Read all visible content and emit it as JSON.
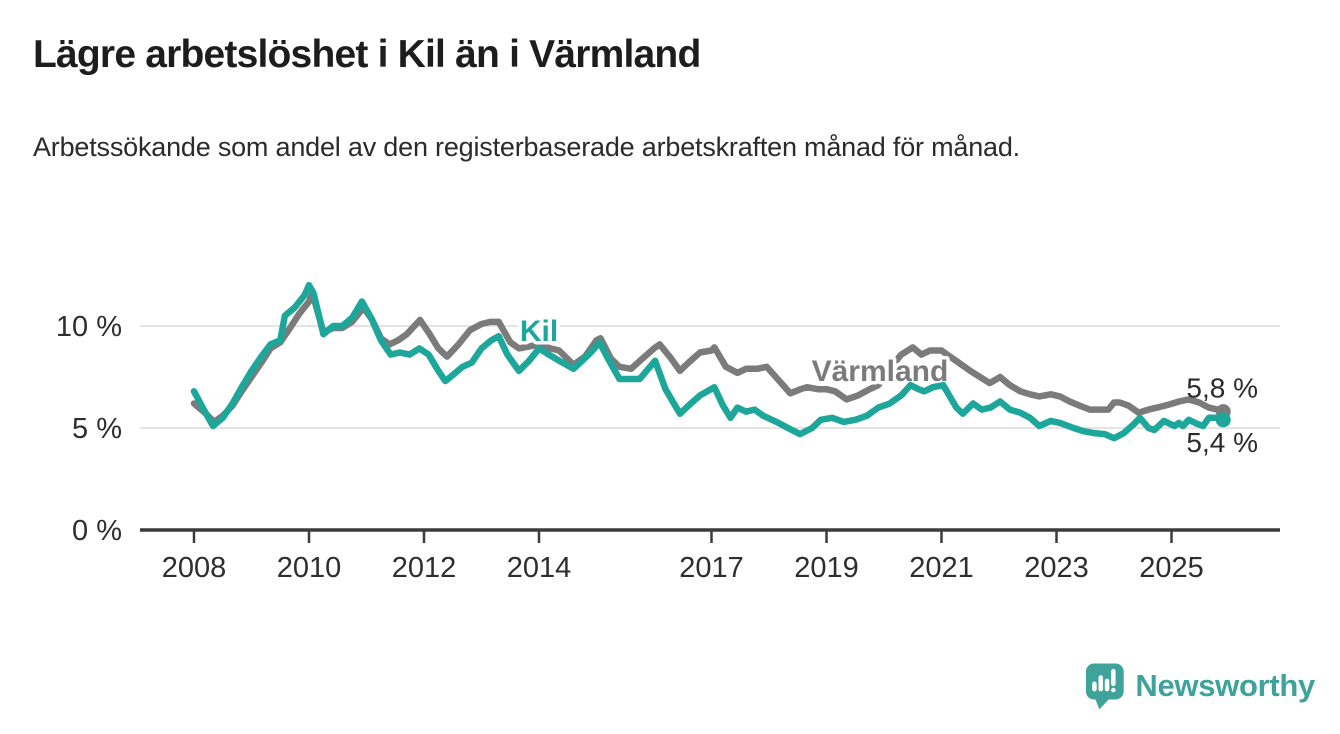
{
  "header": {
    "title": "Lägre arbetslöshet i Kil än i Värmland",
    "subtitle": "Arbetssökande som andel av den registerbaserade arbetskraften månad för månad."
  },
  "footer": {
    "logo_text": "Newsworthy"
  },
  "colors": {
    "kil_line": "#1da79b",
    "varmland_line": "#7b7b7b",
    "grid": "#dcdcdc",
    "axis": "#3b3b3b",
    "tick_label": "#2e2e2e",
    "end_label": "#2b2b2b",
    "logo": "#3fa39b",
    "background": "#ffffff"
  },
  "chart_data": {
    "type": "line",
    "title": "Lägre arbetslöshet i Kil än i Värmland",
    "subtitle": "Arbetssökande som andel av den registerbaserade arbetskraften månad för månad.",
    "unit": "%",
    "x_axis": {
      "range": [
        2007.6,
        2026.4
      ],
      "ticks": [
        {
          "value": 2008,
          "label": "2008"
        },
        {
          "value": 2010,
          "label": "2010"
        },
        {
          "value": 2012,
          "label": "2012"
        },
        {
          "value": 2014,
          "label": "2014"
        },
        {
          "value": 2017,
          "label": "2017"
        },
        {
          "value": 2019,
          "label": "2019"
        },
        {
          "value": 2021,
          "label": "2021"
        },
        {
          "value": 2023,
          "label": "2023"
        },
        {
          "value": 2025,
          "label": "2025"
        }
      ]
    },
    "y_axis": {
      "range": [
        0,
        12.5
      ],
      "grid": true,
      "ticks": [
        {
          "value": 0,
          "label": "0 %"
        },
        {
          "value": 5,
          "label": "5 %"
        },
        {
          "value": 10,
          "label": "10 %"
        }
      ]
    },
    "series": [
      {
        "name": "Värmland",
        "color": "#7b7b7b",
        "end_label": "5,8 %",
        "end_value": 5.8,
        "label_at": [
          2019.93,
          7.7
        ],
        "points": [
          [
            2008.0,
            6.2
          ],
          [
            2008.17,
            5.8
          ],
          [
            2008.35,
            5.3
          ],
          [
            2008.5,
            5.6
          ],
          [
            2008.67,
            6.1
          ],
          [
            2008.83,
            6.8
          ],
          [
            2009.0,
            7.5
          ],
          [
            2009.17,
            8.2
          ],
          [
            2009.33,
            8.9
          ],
          [
            2009.5,
            9.2
          ],
          [
            2009.67,
            9.9
          ],
          [
            2009.83,
            10.6
          ],
          [
            2010.0,
            11.2
          ],
          [
            2010.06,
            11.6
          ],
          [
            2010.25,
            9.7
          ],
          [
            2010.42,
            9.9
          ],
          [
            2010.58,
            9.9
          ],
          [
            2010.75,
            10.2
          ],
          [
            2010.95,
            10.9
          ],
          [
            2011.1,
            10.3
          ],
          [
            2011.25,
            9.4
          ],
          [
            2011.4,
            9.1
          ],
          [
            2011.55,
            9.3
          ],
          [
            2011.7,
            9.6
          ],
          [
            2011.93,
            10.3
          ],
          [
            2012.1,
            9.6
          ],
          [
            2012.25,
            8.9
          ],
          [
            2012.4,
            8.5
          ],
          [
            2012.6,
            9.1
          ],
          [
            2012.8,
            9.8
          ],
          [
            2013.0,
            10.1
          ],
          [
            2013.15,
            10.2
          ],
          [
            2013.3,
            10.2
          ],
          [
            2013.5,
            9.2
          ],
          [
            2013.65,
            8.9
          ],
          [
            2013.83,
            9.0
          ],
          [
            2014.0,
            9.1
          ],
          [
            2014.2,
            8.9
          ],
          [
            2014.35,
            8.8
          ],
          [
            2014.6,
            8.1
          ],
          [
            2014.8,
            8.5
          ],
          [
            2015.0,
            9.3
          ],
          [
            2015.07,
            9.4
          ],
          [
            2015.25,
            8.4
          ],
          [
            2015.4,
            8.0
          ],
          [
            2015.6,
            7.9
          ],
          [
            2015.8,
            8.4
          ],
          [
            2016.0,
            8.9
          ],
          [
            2016.1,
            9.1
          ],
          [
            2016.3,
            8.4
          ],
          [
            2016.45,
            7.8
          ],
          [
            2016.6,
            8.2
          ],
          [
            2016.8,
            8.7
          ],
          [
            2017.0,
            8.8
          ],
          [
            2017.05,
            8.95
          ],
          [
            2017.25,
            8.0
          ],
          [
            2017.45,
            7.7
          ],
          [
            2017.6,
            7.9
          ],
          [
            2017.8,
            7.9
          ],
          [
            2017.96,
            8.0
          ],
          [
            2018.15,
            7.4
          ],
          [
            2018.37,
            6.7
          ],
          [
            2018.55,
            6.9
          ],
          [
            2018.66,
            7.0
          ],
          [
            2018.85,
            6.9
          ],
          [
            2019.0,
            6.9
          ],
          [
            2019.15,
            6.8
          ],
          [
            2019.35,
            6.4
          ],
          [
            2019.55,
            6.6
          ],
          [
            2019.75,
            6.9
          ],
          [
            2019.9,
            7.1
          ],
          [
            2020.1,
            7.9
          ],
          [
            2020.3,
            8.6
          ],
          [
            2020.5,
            8.95
          ],
          [
            2020.65,
            8.6
          ],
          [
            2020.8,
            8.8
          ],
          [
            2021.0,
            8.8
          ],
          [
            2021.15,
            8.5
          ],
          [
            2021.3,
            8.2
          ],
          [
            2021.5,
            7.8
          ],
          [
            2021.67,
            7.5
          ],
          [
            2021.84,
            7.2
          ],
          [
            2022.02,
            7.5
          ],
          [
            2022.19,
            7.1
          ],
          [
            2022.37,
            6.8
          ],
          [
            2022.54,
            6.65
          ],
          [
            2022.7,
            6.55
          ],
          [
            2022.9,
            6.65
          ],
          [
            2023.06,
            6.55
          ],
          [
            2023.23,
            6.3
          ],
          [
            2023.4,
            6.1
          ],
          [
            2023.58,
            5.9
          ],
          [
            2023.75,
            5.9
          ],
          [
            2023.9,
            5.9
          ],
          [
            2024.0,
            6.25
          ],
          [
            2024.1,
            6.25
          ],
          [
            2024.25,
            6.1
          ],
          [
            2024.43,
            5.75
          ],
          [
            2024.6,
            5.9
          ],
          [
            2024.75,
            6.0
          ],
          [
            2024.96,
            6.15
          ],
          [
            2025.13,
            6.3
          ],
          [
            2025.3,
            6.4
          ],
          [
            2025.48,
            6.25
          ],
          [
            2025.65,
            6.0
          ],
          [
            2025.8,
            5.9
          ],
          [
            2025.9,
            5.8
          ]
        ]
      },
      {
        "name": "Kil",
        "color": "#1da79b",
        "end_label": "5,4 %",
        "end_value": 5.4,
        "label_at": [
          2014.0,
          9.65
        ],
        "points": [
          [
            2008.0,
            6.8
          ],
          [
            2008.17,
            5.9
          ],
          [
            2008.33,
            5.1
          ],
          [
            2008.5,
            5.5
          ],
          [
            2008.67,
            6.2
          ],
          [
            2008.83,
            7.0
          ],
          [
            2009.0,
            7.8
          ],
          [
            2009.17,
            8.5
          ],
          [
            2009.33,
            9.1
          ],
          [
            2009.5,
            9.3
          ],
          [
            2009.58,
            10.5
          ],
          [
            2009.75,
            10.9
          ],
          [
            2009.92,
            11.5
          ],
          [
            2010.0,
            12.0
          ],
          [
            2010.08,
            11.6
          ],
          [
            2010.25,
            9.6
          ],
          [
            2010.42,
            10.0
          ],
          [
            2010.58,
            10.0
          ],
          [
            2010.75,
            10.4
          ],
          [
            2010.92,
            11.2
          ],
          [
            2011.08,
            10.4
          ],
          [
            2011.25,
            9.3
          ],
          [
            2011.42,
            8.6
          ],
          [
            2011.58,
            8.7
          ],
          [
            2011.75,
            8.6
          ],
          [
            2011.92,
            8.9
          ],
          [
            2012.08,
            8.6
          ],
          [
            2012.25,
            7.8
          ],
          [
            2012.37,
            7.3
          ],
          [
            2012.5,
            7.6
          ],
          [
            2012.67,
            8.0
          ],
          [
            2012.83,
            8.2
          ],
          [
            2013.0,
            8.9
          ],
          [
            2013.17,
            9.3
          ],
          [
            2013.3,
            9.5
          ],
          [
            2013.45,
            8.6
          ],
          [
            2013.65,
            7.8
          ],
          [
            2013.83,
            8.3
          ],
          [
            2014.0,
            8.9
          ],
          [
            2014.17,
            8.6
          ],
          [
            2014.35,
            8.3
          ],
          [
            2014.6,
            7.9
          ],
          [
            2014.75,
            8.3
          ],
          [
            2014.9,
            8.7
          ],
          [
            2015.05,
            9.2
          ],
          [
            2015.2,
            8.4
          ],
          [
            2015.4,
            7.4
          ],
          [
            2015.6,
            7.4
          ],
          [
            2015.75,
            7.4
          ],
          [
            2015.9,
            7.9
          ],
          [
            2016.02,
            8.3
          ],
          [
            2016.2,
            6.9
          ],
          [
            2016.45,
            5.7
          ],
          [
            2016.6,
            6.1
          ],
          [
            2016.8,
            6.6
          ],
          [
            2017.05,
            7.0
          ],
          [
            2017.2,
            6.1
          ],
          [
            2017.33,
            5.5
          ],
          [
            2017.45,
            6.0
          ],
          [
            2017.6,
            5.8
          ],
          [
            2017.75,
            5.9
          ],
          [
            2017.9,
            5.6
          ],
          [
            2018.13,
            5.3
          ],
          [
            2018.33,
            5.0
          ],
          [
            2018.54,
            4.7
          ],
          [
            2018.75,
            5.0
          ],
          [
            2018.9,
            5.4
          ],
          [
            2019.1,
            5.5
          ],
          [
            2019.3,
            5.3
          ],
          [
            2019.5,
            5.4
          ],
          [
            2019.7,
            5.6
          ],
          [
            2019.9,
            6.0
          ],
          [
            2020.1,
            6.2
          ],
          [
            2020.3,
            6.6
          ],
          [
            2020.46,
            7.1
          ],
          [
            2020.6,
            6.9
          ],
          [
            2020.7,
            6.8
          ],
          [
            2020.85,
            7.0
          ],
          [
            2021.03,
            7.1
          ],
          [
            2021.26,
            6.0
          ],
          [
            2021.37,
            5.7
          ],
          [
            2021.55,
            6.2
          ],
          [
            2021.7,
            5.9
          ],
          [
            2021.85,
            6.0
          ],
          [
            2022.02,
            6.3
          ],
          [
            2022.19,
            5.9
          ],
          [
            2022.37,
            5.75
          ],
          [
            2022.54,
            5.5
          ],
          [
            2022.7,
            5.1
          ],
          [
            2022.9,
            5.35
          ],
          [
            2023.06,
            5.25
          ],
          [
            2023.3,
            5.0
          ],
          [
            2023.46,
            4.85
          ],
          [
            2023.65,
            4.75
          ],
          [
            2023.84,
            4.7
          ],
          [
            2024.0,
            4.5
          ],
          [
            2024.17,
            4.75
          ],
          [
            2024.35,
            5.2
          ],
          [
            2024.45,
            5.5
          ],
          [
            2024.6,
            5.0
          ],
          [
            2024.7,
            4.9
          ],
          [
            2024.87,
            5.35
          ],
          [
            2025.05,
            5.1
          ],
          [
            2025.13,
            5.25
          ],
          [
            2025.2,
            5.1
          ],
          [
            2025.3,
            5.4
          ],
          [
            2025.45,
            5.2
          ],
          [
            2025.55,
            5.1
          ],
          [
            2025.65,
            5.5
          ],
          [
            2025.8,
            5.5
          ],
          [
            2025.9,
            5.4
          ]
        ]
      }
    ]
  }
}
